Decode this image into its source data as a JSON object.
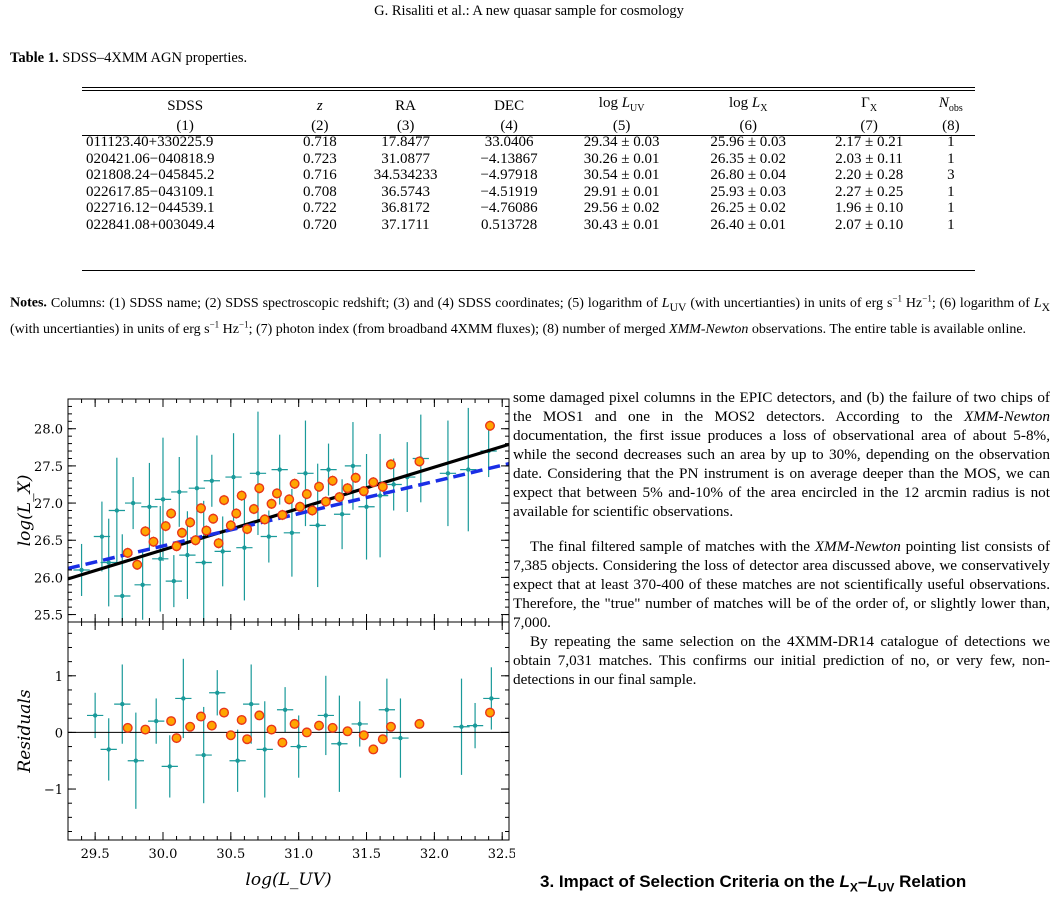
{
  "header": "G. Risaliti et al.: A new quasar sample for cosmology",
  "table": {
    "label": "Table 1.",
    "title": "SDSS–4XMM AGN properties.",
    "columns": [
      "SDSS",
      "z",
      "RA",
      "DEC",
      "log L",
      "log L",
      "Γ",
      "N"
    ],
    "column_subscripts": [
      "",
      "",
      "",
      "",
      "UV",
      "X",
      "X",
      "obs"
    ],
    "column_numbers": [
      "(1)",
      "(2)",
      "(3)",
      "(4)",
      "(5)",
      "(6)",
      "(7)",
      "(8)"
    ],
    "rows": [
      [
        "011123.40+330225.9",
        "0.718",
        "17.8477",
        "33.0406",
        "29.34 ± 0.03",
        "25.96 ± 0.03",
        "2.17 ± 0.21",
        "1"
      ],
      [
        "020421.06−040818.9",
        "0.723",
        "31.0877",
        "−4.13867",
        "30.26 ± 0.01",
        "26.35 ± 0.02",
        "2.03 ± 0.11",
        "1"
      ],
      [
        "021808.24−045845.2",
        "0.716",
        "34.534233",
        "−4.97918",
        "30.54 ± 0.01",
        "26.80 ± 0.04",
        "2.20 ± 0.28",
        "3"
      ],
      [
        "022617.85−043109.1",
        "0.708",
        "36.5743",
        "−4.51919",
        "29.91 ± 0.01",
        "25.93 ± 0.03",
        "2.27 ± 0.25",
        "1"
      ],
      [
        "022716.12−044539.1",
        "0.722",
        "36.8172",
        "−4.76086",
        "29.56 ± 0.02",
        "26.25 ± 0.02",
        "1.96 ± 0.10",
        "1"
      ],
      [
        "022841.08+003049.4",
        "0.720",
        "37.1711",
        "0.513728",
        "30.43 ± 0.01",
        "26.40 ± 0.01",
        "2.07 ± 0.10",
        "1"
      ]
    ]
  },
  "notes": {
    "label": "Notes.",
    "text": "Columns: (1) SDSS name; (2) SDSS spectroscopic redshift; (3) and (4) SDSS coordinates; (5) logarithm of L_UV (with uncertianties) in units of erg s⁻¹ Hz⁻¹; (6) logarithm of L_X (with uncertianties) in units of erg s⁻¹ Hz⁻¹; (7) photon index (from broadband 4XMM fluxes); (8) number of merged XMM-Newton observations. The entire table is available online."
  },
  "chart_data": {
    "type": "scatter",
    "panels": [
      {
        "name": "main",
        "ylabel": "log(L_X)",
        "xlim": [
          29.3,
          32.55
        ],
        "ylim": [
          25.4,
          28.4
        ],
        "yticks": [
          "25.5",
          "26.0",
          "26.5",
          "27.0",
          "27.5",
          "28.0"
        ],
        "lines": [
          {
            "style": "solid black",
            "x": [
              29.3,
              32.55
            ],
            "y": [
              25.98,
              27.79
            ]
          },
          {
            "style": "dashed blue",
            "x": [
              29.3,
              32.55
            ],
            "y": [
              26.12,
              27.53
            ]
          }
        ],
        "highlighted_points": [
          {
            "x": 29.74,
            "y": 26.33
          },
          {
            "x": 29.81,
            "y": 26.17
          },
          {
            "x": 29.87,
            "y": 26.62
          },
          {
            "x": 29.93,
            "y": 26.48
          },
          {
            "x": 30.02,
            "y": 26.69
          },
          {
            "x": 30.06,
            "y": 26.86
          },
          {
            "x": 30.1,
            "y": 26.42
          },
          {
            "x": 30.14,
            "y": 26.6
          },
          {
            "x": 30.2,
            "y": 26.74
          },
          {
            "x": 30.24,
            "y": 26.5
          },
          {
            "x": 30.28,
            "y": 26.93
          },
          {
            "x": 30.32,
            "y": 26.63
          },
          {
            "x": 30.37,
            "y": 26.79
          },
          {
            "x": 30.41,
            "y": 26.46
          },
          {
            "x": 30.45,
            "y": 27.04
          },
          {
            "x": 30.5,
            "y": 26.7
          },
          {
            "x": 30.54,
            "y": 26.86
          },
          {
            "x": 30.58,
            "y": 27.1
          },
          {
            "x": 30.62,
            "y": 26.65
          },
          {
            "x": 30.67,
            "y": 26.92
          },
          {
            "x": 30.71,
            "y": 27.2
          },
          {
            "x": 30.75,
            "y": 26.78
          },
          {
            "x": 30.8,
            "y": 26.99
          },
          {
            "x": 30.84,
            "y": 27.13
          },
          {
            "x": 30.88,
            "y": 26.84
          },
          {
            "x": 30.93,
            "y": 27.05
          },
          {
            "x": 30.97,
            "y": 27.26
          },
          {
            "x": 31.01,
            "y": 26.95
          },
          {
            "x": 31.06,
            "y": 27.12
          },
          {
            "x": 31.1,
            "y": 26.9
          },
          {
            "x": 31.15,
            "y": 27.22
          },
          {
            "x": 31.2,
            "y": 27.02
          },
          {
            "x": 31.25,
            "y": 27.3
          },
          {
            "x": 31.3,
            "y": 27.08
          },
          {
            "x": 31.36,
            "y": 27.2
          },
          {
            "x": 31.42,
            "y": 27.34
          },
          {
            "x": 31.48,
            "y": 27.16
          },
          {
            "x": 31.55,
            "y": 27.28
          },
          {
            "x": 31.62,
            "y": 27.22
          },
          {
            "x": 31.68,
            "y": 27.52
          },
          {
            "x": 31.89,
            "y": 27.56
          },
          {
            "x": 32.41,
            "y": 28.04
          }
        ],
        "other_points": [
          {
            "x": 29.4,
            "y": 26.1
          },
          {
            "x": 29.55,
            "y": 26.55
          },
          {
            "x": 29.6,
            "y": 26.2
          },
          {
            "x": 29.66,
            "y": 26.9
          },
          {
            "x": 29.7,
            "y": 25.75
          },
          {
            "x": 29.78,
            "y": 27.0
          },
          {
            "x": 29.85,
            "y": 25.9
          },
          {
            "x": 29.9,
            "y": 26.95
          },
          {
            "x": 29.98,
            "y": 26.25
          },
          {
            "x": 30.0,
            "y": 27.05
          },
          {
            "x": 30.08,
            "y": 25.95
          },
          {
            "x": 30.12,
            "y": 27.15
          },
          {
            "x": 30.18,
            "y": 26.3
          },
          {
            "x": 30.25,
            "y": 27.2
          },
          {
            "x": 30.3,
            "y": 26.2
          },
          {
            "x": 30.36,
            "y": 27.3
          },
          {
            "x": 30.44,
            "y": 26.35
          },
          {
            "x": 30.52,
            "y": 27.35
          },
          {
            "x": 30.6,
            "y": 26.4
          },
          {
            "x": 30.7,
            "y": 27.4
          },
          {
            "x": 30.78,
            "y": 26.55
          },
          {
            "x": 30.86,
            "y": 27.45
          },
          {
            "x": 30.95,
            "y": 26.6
          },
          {
            "x": 31.05,
            "y": 27.4
          },
          {
            "x": 31.14,
            "y": 26.7
          },
          {
            "x": 31.22,
            "y": 27.45
          },
          {
            "x": 31.32,
            "y": 26.85
          },
          {
            "x": 31.4,
            "y": 27.5
          },
          {
            "x": 31.5,
            "y": 26.95
          },
          {
            "x": 31.6,
            "y": 27.1
          },
          {
            "x": 31.7,
            "y": 27.25
          },
          {
            "x": 31.8,
            "y": 27.35
          },
          {
            "x": 31.9,
            "y": 27.6
          },
          {
            "x": 32.1,
            "y": 27.4
          },
          {
            "x": 32.25,
            "y": 27.45
          },
          {
            "x": 32.4,
            "y": 27.7
          }
        ]
      },
      {
        "name": "residuals",
        "ylabel": "Residuals",
        "xlabel": "log(L_UV)",
        "xlim": [
          29.3,
          32.55
        ],
        "ylim": [
          -1.9,
          1.95
        ],
        "yticks": [
          "−1",
          "0",
          "1"
        ],
        "xticks": [
          "29.5",
          "30.0",
          "30.5",
          "31.0",
          "31.5",
          "32.0",
          "32.5"
        ],
        "zero_line": 0,
        "highlighted_points": [
          {
            "x": 29.74,
            "y": 0.08
          },
          {
            "x": 29.87,
            "y": 0.05
          },
          {
            "x": 30.06,
            "y": 0.2
          },
          {
            "x": 30.1,
            "y": -0.1
          },
          {
            "x": 30.2,
            "y": 0.1
          },
          {
            "x": 30.28,
            "y": 0.28
          },
          {
            "x": 30.36,
            "y": 0.12
          },
          {
            "x": 30.45,
            "y": 0.35
          },
          {
            "x": 30.5,
            "y": -0.05
          },
          {
            "x": 30.58,
            "y": 0.22
          },
          {
            "x": 30.62,
            "y": -0.12
          },
          {
            "x": 30.71,
            "y": 0.3
          },
          {
            "x": 30.8,
            "y": 0.05
          },
          {
            "x": 30.88,
            "y": -0.18
          },
          {
            "x": 30.97,
            "y": 0.15
          },
          {
            "x": 31.06,
            "y": 0.0
          },
          {
            "x": 31.15,
            "y": 0.12
          },
          {
            "x": 31.25,
            "y": 0.08
          },
          {
            "x": 31.36,
            "y": 0.02
          },
          {
            "x": 31.48,
            "y": -0.05
          },
          {
            "x": 31.55,
            "y": -0.3
          },
          {
            "x": 31.62,
            "y": -0.12
          },
          {
            "x": 31.68,
            "y": 0.1
          },
          {
            "x": 31.89,
            "y": 0.15
          },
          {
            "x": 32.41,
            "y": 0.35
          }
        ],
        "other_points": [
          {
            "x": 29.5,
            "y": 0.3
          },
          {
            "x": 29.6,
            "y": -0.3
          },
          {
            "x": 29.7,
            "y": 0.5
          },
          {
            "x": 29.8,
            "y": -0.5
          },
          {
            "x": 29.95,
            "y": 0.2
          },
          {
            "x": 30.05,
            "y": -0.6
          },
          {
            "x": 30.15,
            "y": 0.6
          },
          {
            "x": 30.3,
            "y": -0.4
          },
          {
            "x": 30.4,
            "y": 0.7
          },
          {
            "x": 30.55,
            "y": -0.5
          },
          {
            "x": 30.65,
            "y": 0.5
          },
          {
            "x": 30.75,
            "y": -0.3
          },
          {
            "x": 30.9,
            "y": 0.4
          },
          {
            "x": 31.0,
            "y": -0.25
          },
          {
            "x": 31.2,
            "y": 0.3
          },
          {
            "x": 31.3,
            "y": -0.2
          },
          {
            "x": 31.45,
            "y": 0.15
          },
          {
            "x": 31.65,
            "y": 0.4
          },
          {
            "x": 31.75,
            "y": -0.1
          },
          {
            "x": 32.2,
            "y": 0.1
          },
          {
            "x": 32.3,
            "y": 0.12
          },
          {
            "x": 32.42,
            "y": 0.6
          }
        ]
      }
    ]
  },
  "body": {
    "p1": "some damaged pixel columns in the EPIC detectors, and (b) the failure of two chips of the MOS1 and one in the MOS2 detectors. According to the XMM-Newton documentation, the first issue produces a loss of observational area of about 5-8%, while the second decreases such an area by up to 30%, depending on the observation date. Considering that the PN instrument is on average deeper than the MOS, we can expect that between 5% and-10% of the area encircled in the 12 arcmin radius is not available for scientific observations.",
    "p2": "The final filtered sample of matches with the XMM-Newton pointing list consists of 7,385 objects. Considering the loss of detector area discussed above, we conservatively expect that at least 370-400 of these matches are not scientifically useful observations. Therefore, the \"true\" number of matches will be of the order of, or slightly lower than, 7,000.",
    "p3": "By repeating the same selection on the 4XMM-DR14 catalogue of detections we obtain 7,031 matches. This confirms our initial prediction of no, or very few, non-detections in our final sample.",
    "section_number": "3.",
    "section_title": "Impact of Selection Criteria on the L_X–L_UV Relation"
  }
}
